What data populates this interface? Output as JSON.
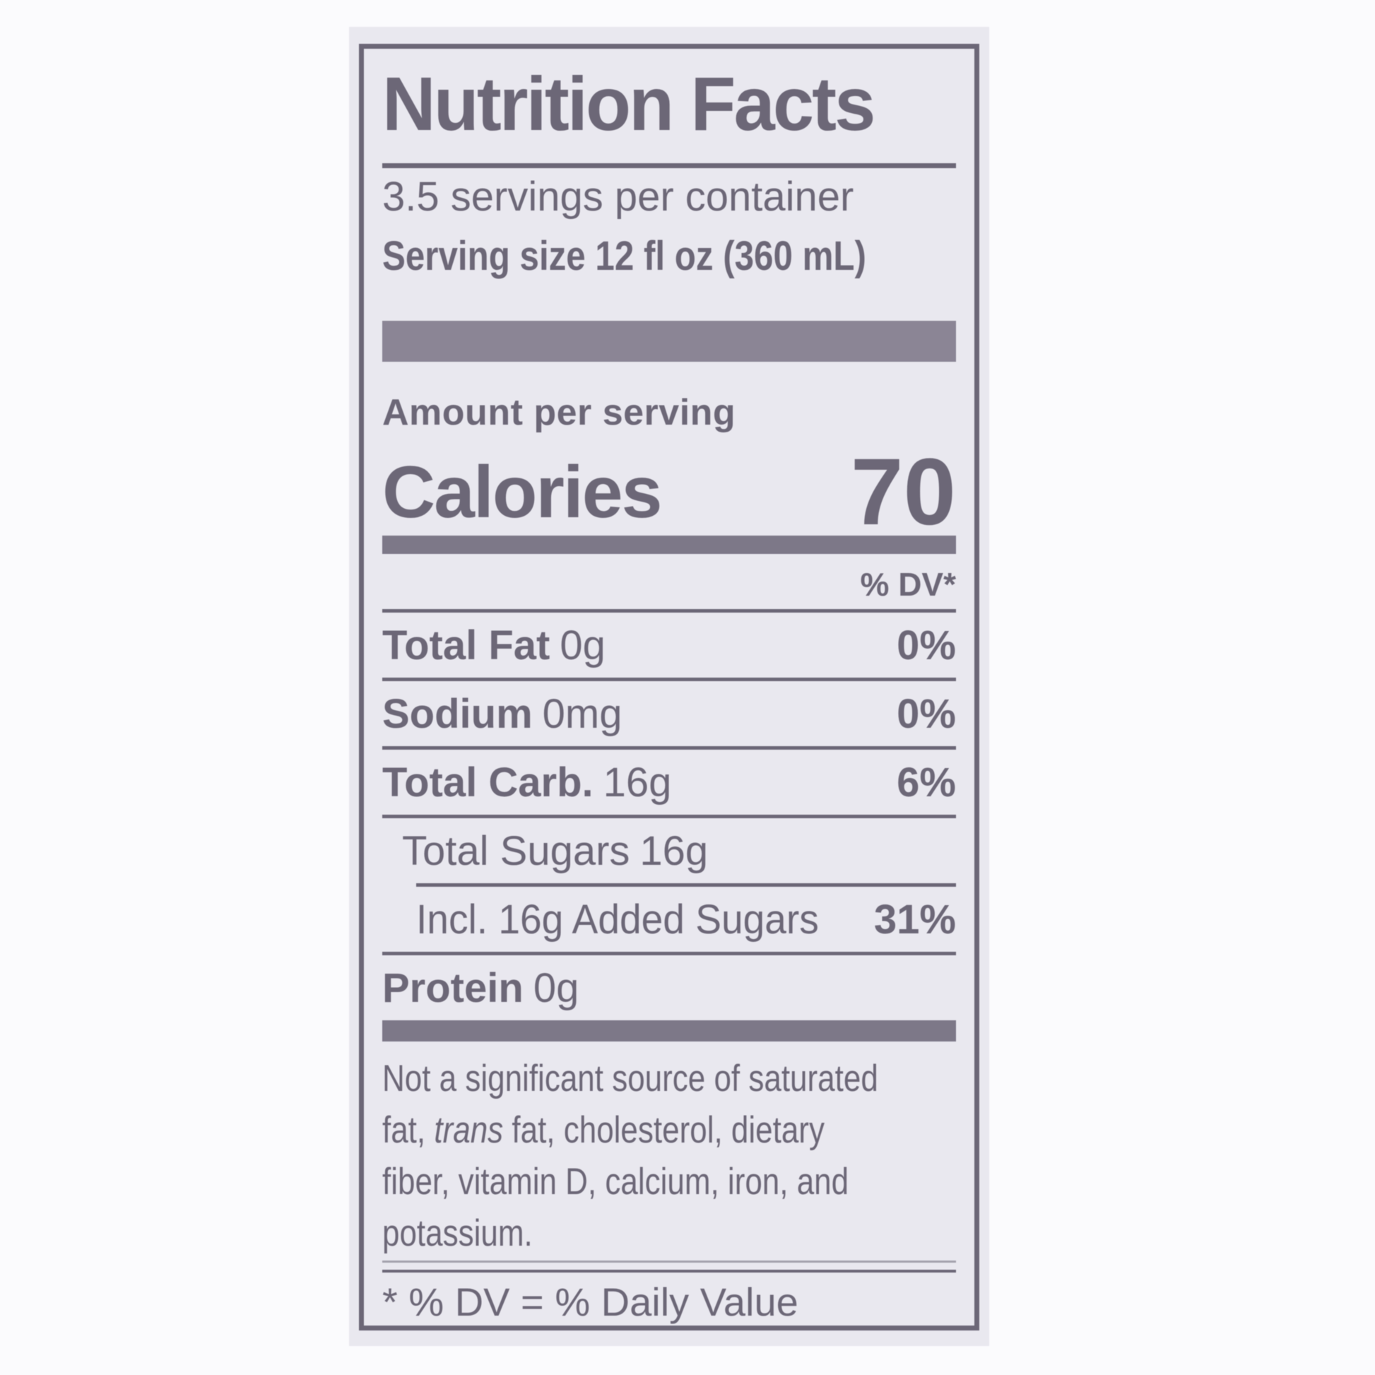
{
  "label": {
    "title": "Nutrition Facts",
    "servings_per_container": "3.5 servings per container",
    "serving_size": "Serving size 12 fl oz (360 mL)",
    "amount_per_serving": "Amount per serving",
    "calories_label": "Calories",
    "calories_value": "70",
    "dv_header": "% DV*",
    "rows": [
      {
        "name": "Total Fat",
        "amount": "0g",
        "dv": "0%"
      },
      {
        "name": "Sodium",
        "amount": "0mg",
        "dv": "0%"
      },
      {
        "name": "Total Carb.",
        "amount": "16g",
        "dv": "6%"
      },
      {
        "name": "Total Sugars",
        "amount": "16g",
        "dv": ""
      },
      {
        "text": "Incl. 16g Added Sugars",
        "dv": "31%"
      },
      {
        "name": "Protein",
        "amount": "0g",
        "dv": ""
      }
    ],
    "footnote_lines": {
      "line1": "Not a significant source of saturated",
      "line2_pre": "fat, ",
      "line2_italic": "trans",
      "line2_post": " fat, cholesterol, dietary",
      "line3": "fiber, vitamin D, calcium, iron, and",
      "line4": "potassium."
    },
    "dv_definition": "* % DV = % Daily Value"
  },
  "colors": {
    "paper": "#e9e8ef",
    "text": "#6c6777",
    "thick_bar": "#8b8595",
    "medium_bar": "#7d7888"
  }
}
